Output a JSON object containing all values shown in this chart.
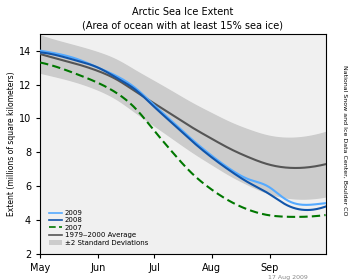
{
  "title": "Arctic Sea Ice Extent",
  "subtitle": "(Area of ocean with at least 15% sea ice)",
  "ylabel": "Extent (millions of square kilometers)",
  "right_label": "National Snow and Ice Data Center, Boulder CO",
  "bottom_label": "17 Aug 2009",
  "xlim": [
    0,
    153
  ],
  "ylim": [
    2,
    15
  ],
  "yticks": [
    2,
    4,
    6,
    8,
    10,
    12,
    14
  ],
  "xtick_positions": [
    0,
    31,
    61,
    92,
    123
  ],
  "xtick_labels": [
    "May",
    "Jun",
    "Jul",
    "Aug",
    "Sep"
  ],
  "color_2009": "#55aaff",
  "color_2008": "#1155aa",
  "color_2007": "#007700",
  "color_avg": "#555555",
  "color_shade": "#cccccc",
  "legend_entries": [
    "2009",
    "2008",
    "2007",
    "1979‒2000 Average",
    "±2 Standard Deviations"
  ],
  "background_color": "#f0f0f0",
  "avg_points_x": [
    0,
    10,
    20,
    31,
    41,
    51,
    61,
    71,
    81,
    92,
    102,
    112,
    122,
    132,
    142,
    153
  ],
  "avg_points_y": [
    13.8,
    13.5,
    13.2,
    12.8,
    12.3,
    11.6,
    10.9,
    10.2,
    9.5,
    8.8,
    8.2,
    7.7,
    7.3,
    7.1,
    7.1,
    7.3
  ],
  "std_points_x": [
    0,
    31,
    61,
    92,
    123,
    153
  ],
  "std_points_y": [
    0.55,
    0.55,
    0.65,
    0.75,
    0.85,
    0.95
  ],
  "y2009_x": [
    0,
    10,
    20,
    31,
    41,
    51,
    61,
    71,
    81,
    92,
    102,
    112,
    122,
    132,
    142,
    153
  ],
  "y2009_y": [
    14.0,
    13.8,
    13.5,
    13.0,
    12.5,
    11.8,
    10.8,
    9.8,
    8.8,
    7.8,
    7.0,
    6.4,
    6.0,
    5.2,
    4.9,
    5.0
  ],
  "y2008_x": [
    0,
    10,
    20,
    31,
    41,
    51,
    61,
    71,
    81,
    92,
    102,
    112,
    122,
    132,
    142,
    153
  ],
  "y2008_y": [
    13.9,
    13.7,
    13.4,
    13.0,
    12.4,
    11.7,
    10.7,
    9.7,
    8.7,
    7.7,
    6.9,
    6.2,
    5.6,
    4.9,
    4.6,
    4.8
  ],
  "y2007_x": [
    0,
    10,
    20,
    31,
    41,
    51,
    61,
    71,
    81,
    92,
    102,
    112,
    122,
    132,
    142,
    153
  ],
  "y2007_y": [
    13.3,
    13.0,
    12.6,
    12.1,
    11.5,
    10.6,
    9.3,
    8.0,
    6.8,
    5.8,
    5.1,
    4.6,
    4.3,
    4.2,
    4.2,
    4.3
  ]
}
